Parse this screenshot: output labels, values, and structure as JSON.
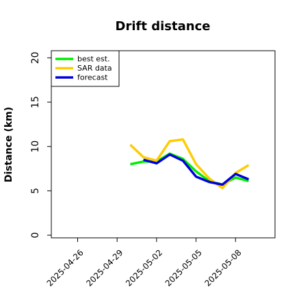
{
  "chart_data": {
    "type": "line",
    "title": "Drift distance",
    "xlabel": "",
    "ylabel": "Distance (km)",
    "ylim": [
      -0.3,
      20.8
    ],
    "yticks": [
      0,
      5,
      10,
      15,
      20
    ],
    "xlim": [
      "2025-04-24",
      "2025-05-11"
    ],
    "xticks": [
      "2025-04-26",
      "2025-04-29",
      "2025-05-02",
      "2025-05-05",
      "2025-05-08"
    ],
    "grid": false,
    "legend_position": "top-left",
    "series": [
      {
        "name": "best est.",
        "color": "#00ee00",
        "points": [
          [
            "2025-04-30",
            8.0
          ],
          [
            "2025-05-01",
            8.3
          ],
          [
            "2025-05-02",
            8.3
          ],
          [
            "2025-05-03",
            9.2
          ],
          [
            "2025-05-04",
            8.6
          ],
          [
            "2025-05-05",
            7.2
          ],
          [
            "2025-05-06",
            6.1
          ],
          [
            "2025-05-07",
            5.7
          ],
          [
            "2025-05-08",
            6.5
          ],
          [
            "2025-05-09",
            6.1
          ]
        ]
      },
      {
        "name": "SAR data",
        "color": "#ffcc00",
        "points": [
          [
            "2025-04-30",
            10.2
          ],
          [
            "2025-05-01",
            8.8
          ],
          [
            "2025-05-02",
            8.4
          ],
          [
            "2025-05-03",
            10.6
          ],
          [
            "2025-05-04",
            10.8
          ],
          [
            "2025-05-05",
            8.0
          ],
          [
            "2025-05-06",
            6.4
          ],
          [
            "2025-05-07",
            5.3
          ],
          [
            "2025-05-08",
            7.0
          ],
          [
            "2025-05-09",
            7.9
          ]
        ]
      },
      {
        "name": "forecast",
        "color": "#0000dd",
        "points": [
          [
            "2025-05-01",
            8.5
          ],
          [
            "2025-05-02",
            8.1
          ],
          [
            "2025-05-03",
            9.1
          ],
          [
            "2025-05-04",
            8.4
          ],
          [
            "2025-05-05",
            6.6
          ],
          [
            "2025-05-06",
            6.0
          ],
          [
            "2025-05-07",
            5.7
          ],
          [
            "2025-05-08",
            6.9
          ],
          [
            "2025-05-09",
            6.3
          ]
        ]
      }
    ]
  }
}
